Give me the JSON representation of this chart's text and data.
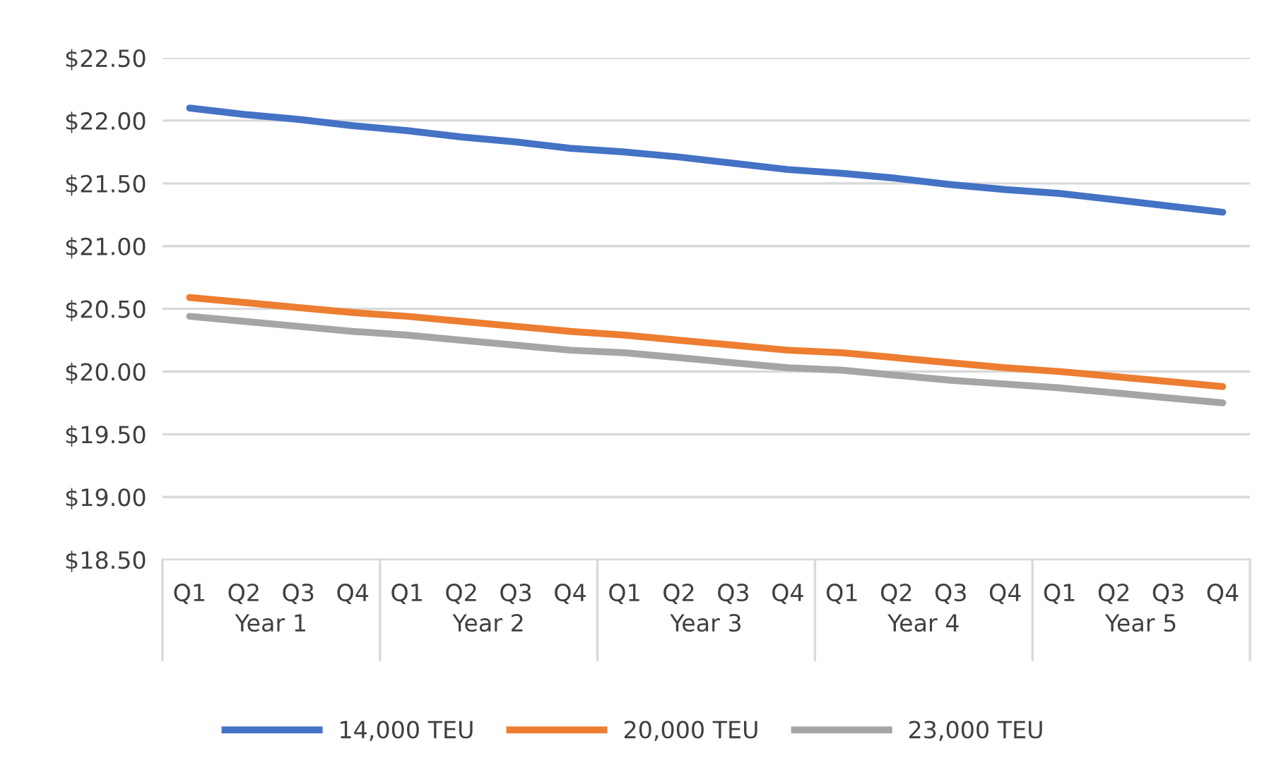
{
  "chart_data": {
    "type": "line",
    "categories": [
      "Q1",
      "Q2",
      "Q3",
      "Q4",
      "Q1",
      "Q2",
      "Q3",
      "Q4",
      "Q1",
      "Q2",
      "Q3",
      "Q4",
      "Q1",
      "Q2",
      "Q3",
      "Q4",
      "Q1",
      "Q2",
      "Q3",
      "Q4"
    ],
    "annotations": [
      "Year 1",
      "Year 2",
      "Year 3",
      "Year 4",
      "Year 5"
    ],
    "series": [
      {
        "name": "14,000 TEU",
        "color": "#4472c4",
        "values": [
          22.1,
          22.05,
          22.01,
          21.96,
          21.92,
          21.87,
          21.83,
          21.78,
          21.75,
          21.71,
          21.66,
          21.61,
          21.58,
          21.54,
          21.49,
          21.45,
          21.42,
          21.37,
          21.32,
          21.27
        ]
      },
      {
        "name": "20,000 TEU",
        "color": "#ed7d31",
        "values": [
          20.59,
          20.55,
          20.51,
          20.47,
          20.44,
          20.4,
          20.36,
          20.32,
          20.29,
          20.25,
          20.21,
          20.17,
          20.15,
          20.11,
          20.07,
          20.03,
          20.0,
          19.96,
          19.92,
          19.88
        ]
      },
      {
        "name": "23,000 TEU",
        "color": "#a5a5a5",
        "values": [
          20.44,
          20.4,
          20.36,
          20.32,
          20.29,
          20.25,
          20.21,
          20.17,
          20.15,
          20.11,
          20.07,
          20.03,
          20.01,
          19.97,
          19.93,
          19.9,
          19.87,
          19.83,
          19.79,
          19.75
        ]
      }
    ],
    "ylim": [
      18.5,
      22.5
    ],
    "yticks": [
      {
        "value": 18.5,
        "label": "$18.50"
      },
      {
        "value": 19,
        "label": "$19.00"
      },
      {
        "value": 19.5,
        "label": "$19.50"
      },
      {
        "value": 20,
        "label": "$20.00"
      },
      {
        "value": 20.5,
        "label": "$20.50"
      },
      {
        "value": 21,
        "label": "$21.00"
      },
      {
        "value": 21.5,
        "label": "$21.50"
      },
      {
        "value": 22,
        "label": "$22.00"
      },
      {
        "value": 22.5,
        "label": "$22.50"
      }
    ],
    "grid": "y",
    "legend": "bottom",
    "marker": "none",
    "line_style": "solid"
  }
}
